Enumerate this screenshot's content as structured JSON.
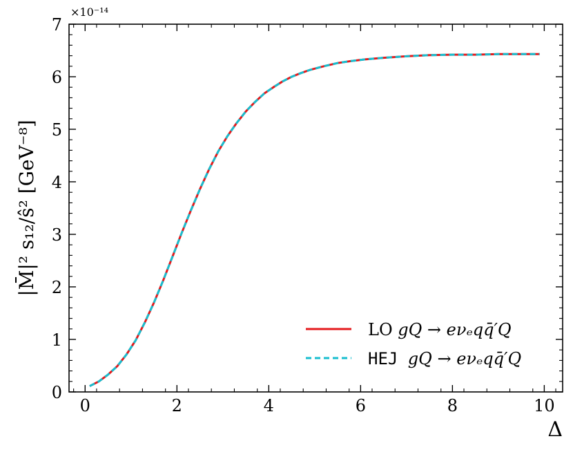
{
  "chart_data": {
    "type": "line",
    "xlabel": "Δ",
    "ylabel": "|M̄|² s₁₂/ŝ² [GeV⁻⁸]",
    "y_multiplier": "×10⁻¹⁴",
    "xlim": [
      -0.35,
      10.4
    ],
    "ylim": [
      0,
      7
    ],
    "x_ticks": [
      0,
      2,
      4,
      6,
      8,
      10
    ],
    "y_ticks": [
      0,
      1,
      2,
      3,
      4,
      5,
      6,
      7
    ],
    "x_tick_labels": [
      "0",
      "2",
      "4",
      "6",
      "8",
      "10"
    ],
    "y_tick_labels": [
      "0",
      "1",
      "2",
      "3",
      "4",
      "5",
      "6",
      "7"
    ],
    "legend_position": "lower-right",
    "grid": false,
    "x": [
      0.1,
      0.3,
      0.5,
      0.7,
      0.9,
      1.1,
      1.3,
      1.5,
      1.7,
      1.9,
      2.1,
      2.3,
      2.5,
      2.7,
      2.9,
      3.1,
      3.3,
      3.5,
      3.7,
      3.9,
      4.1,
      4.3,
      4.5,
      4.7,
      4.9,
      5.2,
      5.5,
      5.8,
      6.1,
      6.5,
      7.0,
      7.5,
      8.0,
      8.5,
      9.0,
      9.5,
      9.9
    ],
    "series": [
      {
        "name": "LO gQ → eνₑqq̄′Q",
        "prefix": "LO",
        "process": "gQ → eνₑqq̄′Q",
        "color": "#e41a1c",
        "style": "solid",
        "values": [
          0.11,
          0.2,
          0.33,
          0.49,
          0.71,
          0.98,
          1.32,
          1.7,
          2.12,
          2.57,
          3.02,
          3.45,
          3.86,
          4.24,
          4.58,
          4.87,
          5.12,
          5.34,
          5.52,
          5.68,
          5.8,
          5.91,
          6.0,
          6.07,
          6.13,
          6.2,
          6.26,
          6.3,
          6.33,
          6.36,
          6.39,
          6.41,
          6.42,
          6.42,
          6.43,
          6.43,
          6.43
        ]
      },
      {
        "name": "HEJ gQ → eνₑqq̄′Q",
        "prefix": "HEJ",
        "process": "gQ → eνₑqq̄′Q",
        "color": "#17becf",
        "style": "dashed",
        "values": [
          0.11,
          0.2,
          0.33,
          0.49,
          0.71,
          0.98,
          1.32,
          1.7,
          2.12,
          2.57,
          3.02,
          3.45,
          3.86,
          4.24,
          4.58,
          4.87,
          5.12,
          5.34,
          5.52,
          5.68,
          5.8,
          5.91,
          6.0,
          6.07,
          6.13,
          6.2,
          6.26,
          6.3,
          6.33,
          6.36,
          6.39,
          6.41,
          6.42,
          6.42,
          6.43,
          6.43,
          6.43
        ]
      }
    ]
  }
}
